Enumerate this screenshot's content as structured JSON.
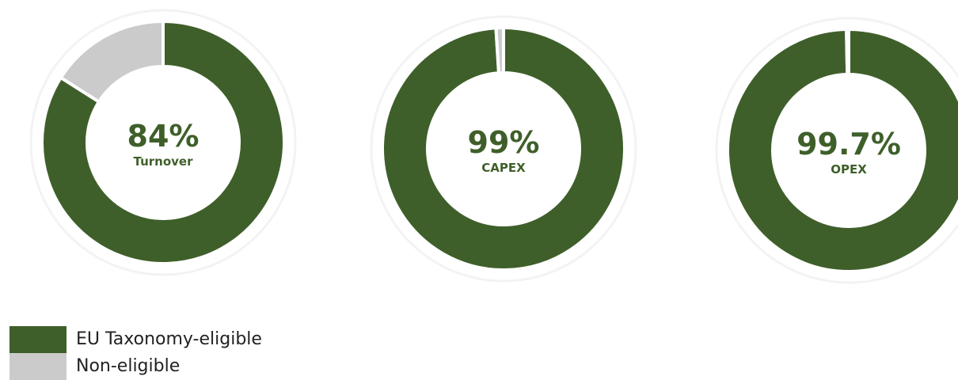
{
  "chart_data": [
    {
      "type": "pie",
      "center_value": "84%",
      "center_label": "Turnover",
      "categories": [
        "EU Taxonomy-eligible",
        "Non-eligible"
      ],
      "values": [
        84,
        16
      ]
    },
    {
      "type": "pie",
      "center_value": "99%",
      "center_label": "CAPEX",
      "categories": [
        "EU Taxonomy-eligible",
        "Non-eligible"
      ],
      "values": [
        99,
        1
      ]
    },
    {
      "type": "pie",
      "center_value": "99.7%",
      "center_label": "OPEX",
      "categories": [
        "EU Taxonomy-eligible",
        "Non-eligible"
      ],
      "values": [
        99.7,
        0.3
      ]
    }
  ],
  "legend": {
    "position": "bottom-left",
    "items": [
      {
        "label": "EU Taxonomy-eligible",
        "color": "#3f5f2a"
      },
      {
        "label": "Non-eligible",
        "color": "#cbcbcb"
      }
    ]
  },
  "colors": {
    "eligible": "#3f5f2a",
    "non_eligible": "#cbcbcb",
    "text": "#3f5f2a"
  }
}
